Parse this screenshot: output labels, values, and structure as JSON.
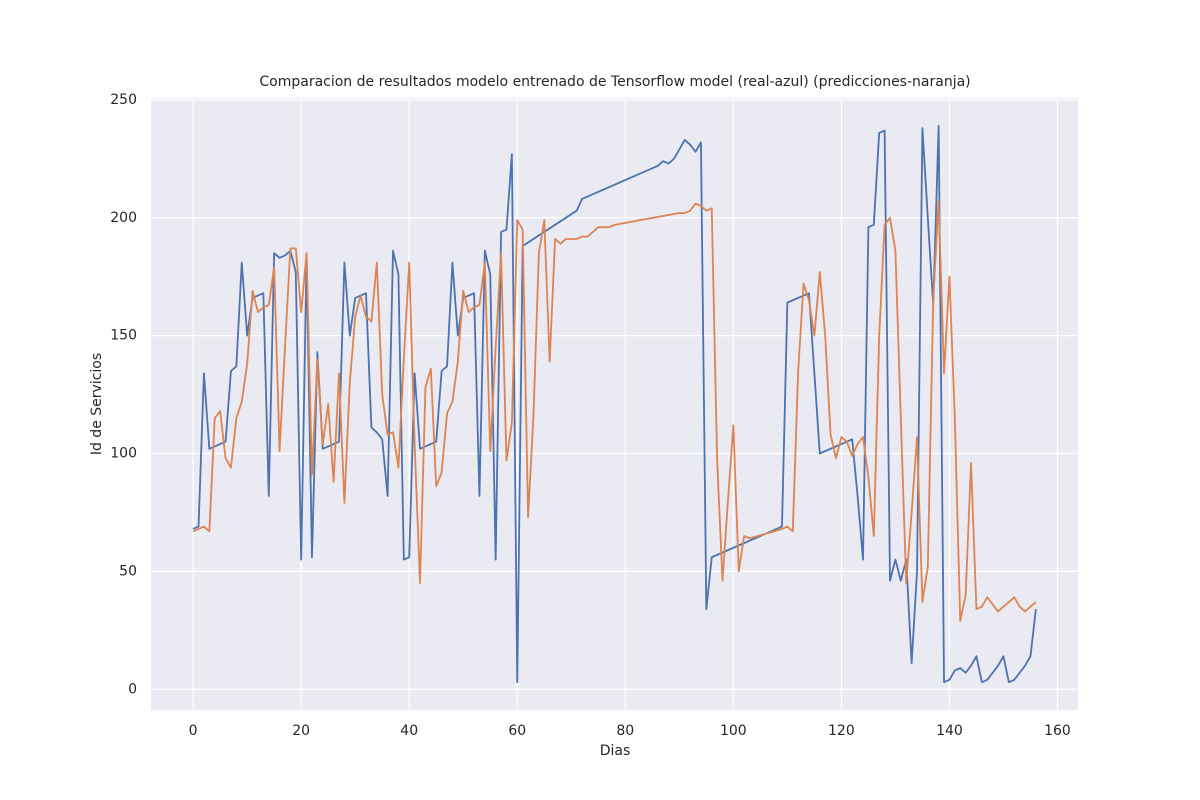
{
  "chart_data": {
    "type": "line",
    "title": "Comparacion de resultados modelo entrenado de Tensorflow model (real-azul) (predicciones-naranja)",
    "xlabel": "Dias",
    "ylabel": "Id de Servicios",
    "xlim": [
      -7.8,
      163.8
    ],
    "ylim": [
      -8.8,
      250.8
    ],
    "xticks": [
      0,
      20,
      40,
      60,
      80,
      100,
      120,
      140,
      160
    ],
    "yticks": [
      0,
      50,
      100,
      150,
      200,
      250
    ],
    "grid": true,
    "series": [
      {
        "color": "#4c72b0",
        "x": [
          0,
          1,
          2,
          3,
          4,
          5,
          6,
          7,
          8,
          9,
          10,
          11,
          12,
          13,
          14,
          15,
          16,
          17,
          18,
          19,
          20,
          21,
          22,
          23,
          24,
          25,
          26,
          27,
          28,
          29,
          30,
          31,
          32,
          33,
          34,
          35,
          36,
          37,
          38,
          39,
          40,
          41,
          42,
          43,
          44,
          45,
          46,
          47,
          48,
          49,
          50,
          51,
          52,
          53,
          54,
          55,
          56,
          57,
          58,
          59,
          60,
          61,
          71,
          72,
          86,
          87,
          88,
          89,
          90,
          91,
          92,
          93,
          94,
          95,
          96,
          109,
          110,
          114,
          116,
          122,
          123,
          124,
          125,
          126,
          127,
          128,
          129,
          130,
          131,
          132,
          133,
          134,
          135,
          136,
          137,
          138,
          139,
          140,
          141,
          142,
          143,
          144,
          145,
          146,
          147,
          148,
          149,
          150,
          151,
          152,
          153,
          154,
          155,
          156
        ],
        "values": [
          68,
          69,
          134,
          102,
          103,
          104,
          105,
          135,
          137,
          181,
          150,
          166,
          167,
          168,
          82,
          185,
          183,
          184,
          186,
          177,
          55,
          183,
          56,
          143,
          102,
          103,
          104,
          105,
          181,
          150,
          166,
          167,
          168,
          111,
          109,
          106,
          82,
          186,
          176,
          55,
          56,
          134,
          102,
          103,
          104,
          105,
          135,
          137,
          181,
          150,
          166,
          167,
          168,
          82,
          186,
          176,
          55,
          194,
          195,
          227,
          3,
          188,
          203,
          208,
          222,
          224,
          223,
          225,
          229,
          233,
          231,
          228,
          232,
          34,
          56,
          69,
          164,
          168,
          100,
          106,
          82,
          55,
          196,
          197,
          236,
          237,
          46,
          55,
          46,
          55,
          11,
          50,
          238,
          200,
          163,
          239,
          3,
          4,
          8,
          9,
          7,
          10,
          14,
          3,
          4,
          7,
          10,
          14,
          3,
          4,
          7,
          10,
          14,
          34
        ]
      },
      {
        "color": "#dd8452",
        "x": [
          0,
          1,
          2,
          3,
          4,
          5,
          6,
          7,
          8,
          9,
          10,
          11,
          12,
          13,
          14,
          15,
          16,
          17,
          18,
          19,
          20,
          21,
          22,
          23,
          24,
          25,
          26,
          27,
          28,
          29,
          30,
          31,
          32,
          33,
          34,
          35,
          36,
          37,
          38,
          39,
          40,
          41,
          42,
          43,
          44,
          45,
          46,
          47,
          48,
          49,
          50,
          51,
          52,
          53,
          54,
          55,
          56,
          57,
          58,
          59,
          60,
          61,
          62,
          63,
          64,
          65,
          66,
          67,
          68,
          69,
          70,
          71,
          72,
          73,
          74,
          75,
          76,
          77,
          78,
          90,
          91,
          92,
          93,
          94,
          95,
          96,
          97,
          98,
          99,
          100,
          101,
          102,
          103,
          109,
          110,
          111,
          112,
          113,
          114,
          115,
          116,
          117,
          118,
          119,
          120,
          121,
          122,
          123,
          124,
          125,
          126,
          127,
          128,
          129,
          130,
          131,
          132,
          133,
          134,
          135,
          136,
          137,
          138,
          139,
          140,
          141,
          142,
          143,
          144,
          145,
          146,
          147,
          148,
          149,
          150,
          151,
          152,
          153,
          154,
          155,
          156
        ],
        "values": [
          67,
          68,
          69,
          67,
          115,
          118,
          98,
          94,
          115,
          122,
          138,
          169,
          160,
          162,
          163,
          179,
          101,
          145,
          187,
          187,
          160,
          185,
          91,
          140,
          104,
          121,
          88,
          134,
          79,
          130,
          158,
          167,
          158,
          156,
          181,
          125,
          108,
          109,
          94,
          140,
          181,
          104,
          45,
          128,
          136,
          86,
          92,
          117,
          122,
          139,
          169,
          160,
          162,
          163,
          181,
          101,
          145,
          185,
          97,
          113,
          199,
          195,
          73,
          116,
          185,
          199,
          139,
          191,
          189,
          191,
          191,
          191,
          192,
          192,
          194,
          196,
          196,
          196,
          197,
          202,
          202,
          203,
          206,
          205,
          203,
          204,
          97,
          46,
          80,
          112,
          50,
          65,
          64,
          68,
          69,
          67,
          135,
          172,
          165,
          150,
          177,
          150,
          108,
          98,
          107,
          105,
          99,
          104,
          107,
          90,
          65,
          150,
          197,
          200,
          186,
          115,
          45,
          75,
          107,
          37,
          52,
          165,
          207,
          134,
          175,
          115,
          29,
          40,
          96,
          34,
          35,
          39,
          36,
          33,
          35,
          37,
          39,
          35,
          33,
          35,
          37
        ]
      }
    ]
  }
}
